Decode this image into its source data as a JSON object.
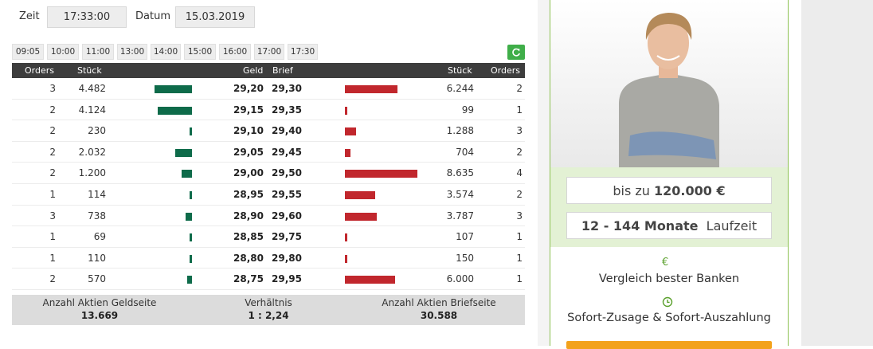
{
  "controls": {
    "zeit_label": "Zeit",
    "zeit_value": "17:33:00",
    "datum_label": "Datum",
    "datum_value": "15.03.2019"
  },
  "time_buttons": [
    "09:05",
    "10:00",
    "11:00",
    "13:00",
    "14:00",
    "15:00",
    "16:00",
    "17:00",
    "17:30"
  ],
  "orderbook": {
    "headers": {
      "bid_orders": "Orders",
      "bid_qty": "Stück",
      "bid_price": "Geld",
      "ask_price": "Brief",
      "ask_qty": "Stück",
      "ask_orders": "Orders"
    },
    "rows": [
      {
        "bid_orders": "3",
        "bid_qty": "4.482",
        "bid_price": "29,20",
        "ask_price": "29,30",
        "ask_qty": "6.244",
        "ask_orders": "2",
        "bid_bar": 4482,
        "ask_bar": 6244
      },
      {
        "bid_orders": "2",
        "bid_qty": "4.124",
        "bid_price": "29,15",
        "ask_price": "29,35",
        "ask_qty": "99",
        "ask_orders": "1",
        "bid_bar": 4124,
        "ask_bar": 99
      },
      {
        "bid_orders": "2",
        "bid_qty": "230",
        "bid_price": "29,10",
        "ask_price": "29,40",
        "ask_qty": "1.288",
        "ask_orders": "3",
        "bid_bar": 230,
        "ask_bar": 1288
      },
      {
        "bid_orders": "2",
        "bid_qty": "2.032",
        "bid_price": "29,05",
        "ask_price": "29,45",
        "ask_qty": "704",
        "ask_orders": "2",
        "bid_bar": 2032,
        "ask_bar": 704
      },
      {
        "bid_orders": "2",
        "bid_qty": "1.200",
        "bid_price": "29,00",
        "ask_price": "29,50",
        "ask_qty": "8.635",
        "ask_orders": "4",
        "bid_bar": 1200,
        "ask_bar": 8635
      },
      {
        "bid_orders": "1",
        "bid_qty": "114",
        "bid_price": "28,95",
        "ask_price": "29,55",
        "ask_qty": "3.574",
        "ask_orders": "2",
        "bid_bar": 114,
        "ask_bar": 3574
      },
      {
        "bid_orders": "3",
        "bid_qty": "738",
        "bid_price": "28,90",
        "ask_price": "29,60",
        "ask_qty": "3.787",
        "ask_orders": "3",
        "bid_bar": 738,
        "ask_bar": 3787
      },
      {
        "bid_orders": "1",
        "bid_qty": "69",
        "bid_price": "28,85",
        "ask_price": "29,75",
        "ask_qty": "107",
        "ask_orders": "1",
        "bid_bar": 69,
        "ask_bar": 107
      },
      {
        "bid_orders": "1",
        "bid_qty": "110",
        "bid_price": "28,80",
        "ask_price": "29,80",
        "ask_qty": "150",
        "ask_orders": "1",
        "bid_bar": 110,
        "ask_bar": 150
      },
      {
        "bid_orders": "2",
        "bid_qty": "570",
        "bid_price": "28,75",
        "ask_price": "29,95",
        "ask_qty": "6.000",
        "ask_orders": "1",
        "bid_bar": 570,
        "ask_bar": 6000
      }
    ],
    "max_qty": 8635
  },
  "summary": {
    "bid_label": "Anzahl Aktien Geldseite",
    "bid_value": "13.669",
    "ratio_label": "Verhältnis",
    "ratio_value": "1 : 2,24",
    "ask_label": "Anzahl Aktien Briefseite",
    "ask_value": "30.588"
  },
  "ad": {
    "amount_prefix": "bis zu",
    "amount_value": "120.000 €",
    "term_range": "12 - 144 Monate",
    "term_suffix": "Laufzeit",
    "feature1_icon": "€",
    "feature1": "Vergleich bester Banken",
    "feature2": "Sofort-Zusage & Sofort-Auszahlung"
  },
  "colors": {
    "bid_bar": "#0e6b4a",
    "ask_bar": "#c1272d",
    "header_bg": "#3d3d3d",
    "refresh_green": "#3fae49",
    "ad_border": "#8cc152"
  }
}
